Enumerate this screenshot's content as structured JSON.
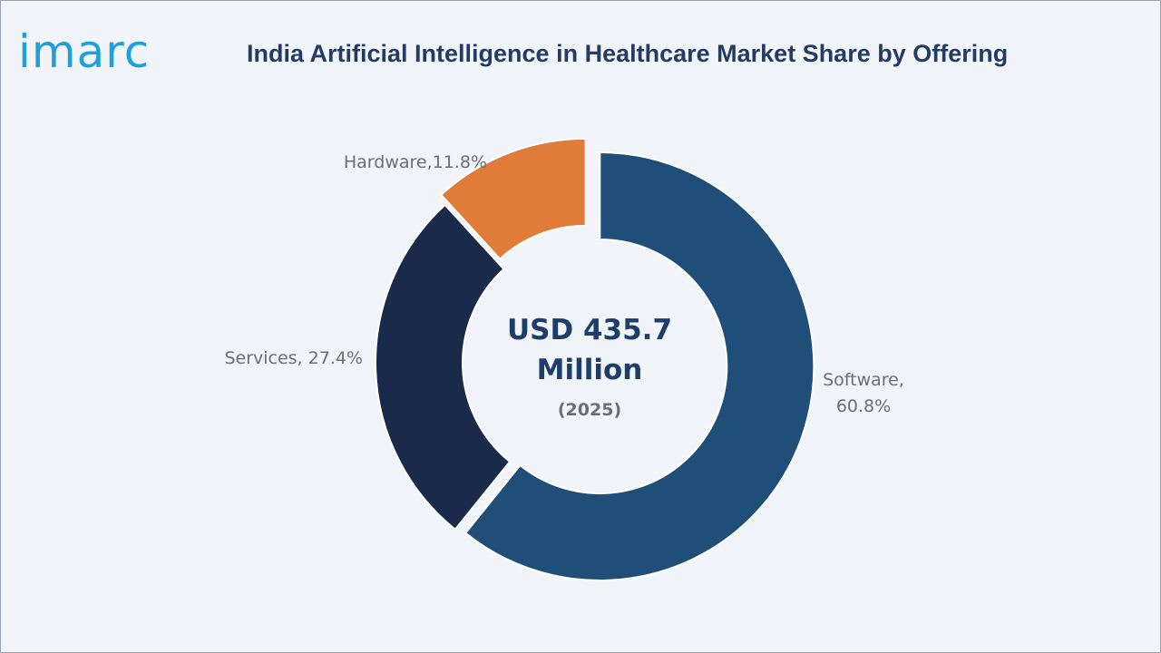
{
  "brand": {
    "logo_text": "imarc",
    "logo_color": "#1ea0dc"
  },
  "header": {
    "title": "India Artificial Intelligence in Healthcare Market Share by Offering"
  },
  "center": {
    "value_line1": "USD 435.7",
    "value_line2": "Million",
    "year": "(2025)"
  },
  "chart_data": {
    "type": "pie",
    "style": "donut",
    "title": "India Artificial Intelligence in Healthcare Market Share by Offering",
    "slices": [
      {
        "label_line1": "Software,",
        "label_line2": "60.8%",
        "category": "Software",
        "value": 60.8,
        "color": "#1f4e78",
        "exploded": true
      },
      {
        "label_line1": "Services, 27.4%",
        "label_line2": "",
        "category": "Services",
        "value": 27.4,
        "color": "#1a2a4a",
        "exploded": false
      },
      {
        "label_line1": "Hardware,11.8%",
        "label_line2": "",
        "category": "Hardware",
        "value": 11.8,
        "color": "#e07b39",
        "exploded": true
      }
    ]
  }
}
